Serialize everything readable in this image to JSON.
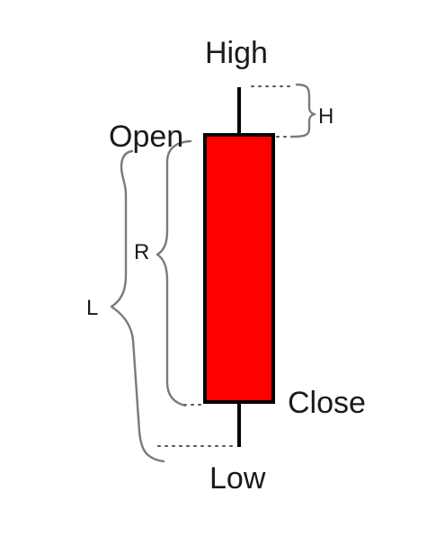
{
  "labels": {
    "high": "High",
    "open": "Open",
    "close": "Close",
    "low": "Low",
    "h": "H",
    "r": "R",
    "l": "L"
  },
  "colors": {
    "candle_body": "#ff0000",
    "outline": "#000000",
    "brace": "#7a7a7a"
  }
}
